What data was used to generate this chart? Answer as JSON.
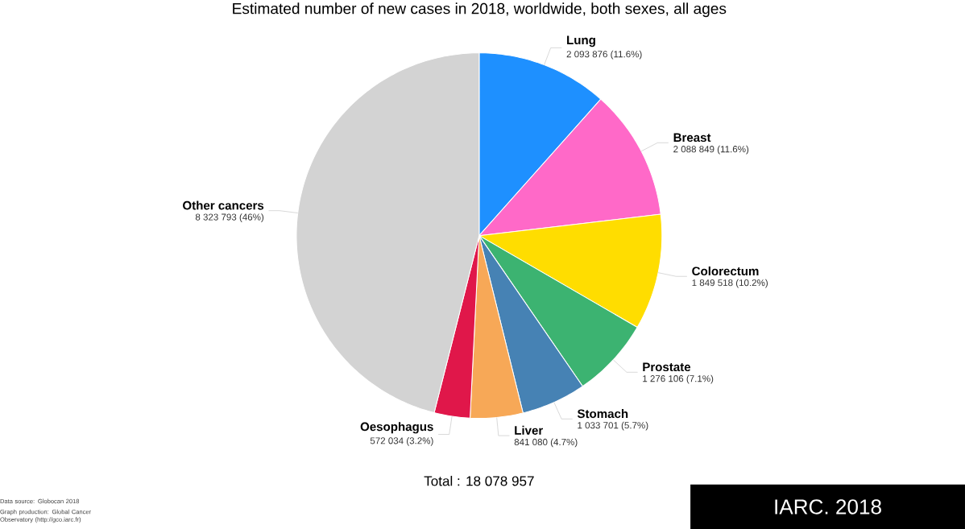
{
  "chart_data": {
    "type": "pie",
    "title": "Estimated number of new cases in 2018, worldwide, both sexes, all ages",
    "categories": [
      "Lung",
      "Breast",
      "Colorectum",
      "Prostate",
      "Stomach",
      "Liver",
      "Oesophagus",
      "Other cancers"
    ],
    "values": [
      2093876,
      2088849,
      1849518,
      1276106,
      1033701,
      841080,
      572034,
      8323793
    ],
    "colors": [
      "#1e90ff",
      "#ff69c8",
      "#ffdd00",
      "#3cb371",
      "#4682b4",
      "#f7a857",
      "#e0174a",
      "#d3d3d3"
    ],
    "value_labels": [
      "2 093 876 (11.6%)",
      "2 088 849 (11.6%)",
      "1 849 518 (10.2%)",
      "1 276 106 (7.1%)",
      "1 033 701 (5.7%)",
      "841 080 (4.7%)",
      "572 034 (3.2%)",
      "8 323 793 (46%)"
    ],
    "annotations": [
      "Total : 18 078 957",
      "Data source: Globocan 2018",
      "Graph production: Global Cancer Observatory (http://gco.iarc.fr)",
      "IARC. 2018"
    ]
  }
}
